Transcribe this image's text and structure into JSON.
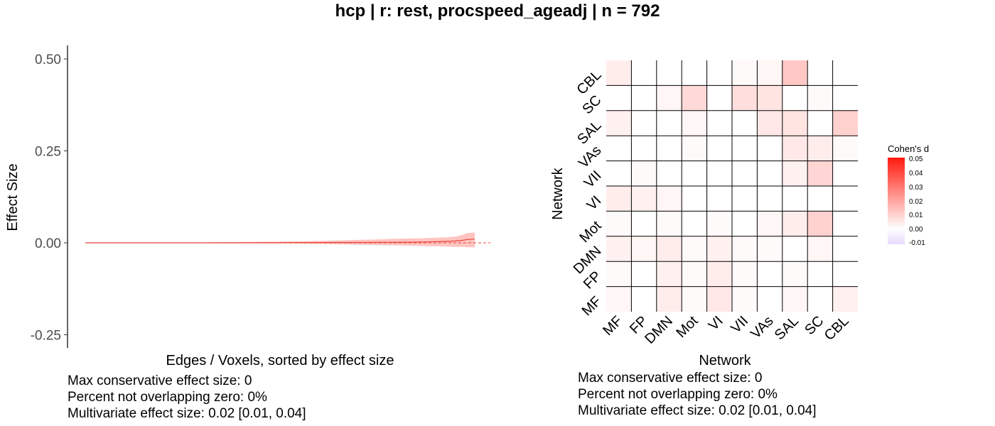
{
  "title": "hcp | r: rest, procspeed_ageadj | n = 792",
  "colors": {
    "ribbon": "#ffc4c0",
    "line": "#e8463a",
    "zero_line": "#e8463a"
  },
  "stats_left": {
    "line1": "Max conservative effect size: 0",
    "line2": "Percent not overlapping zero: 0%",
    "line3": "Multivariate effect size: 0.02 [0.01, 0.04]"
  },
  "stats_right": {
    "line1": "Max conservative effect size: 0",
    "line2": "Percent not overlapping zero: 0%",
    "line3": "Multivariate effect size: 0.02 [0.01, 0.04]"
  },
  "chart_data": [
    {
      "type": "area",
      "xlabel": "Edges / Voxels, sorted by effect size",
      "ylabel": "Effect Size",
      "ylim": [
        -0.28,
        0.53
      ],
      "xlim": [
        0,
        1
      ],
      "yticks": [
        "0.50",
        "0.25",
        "0.00",
        "-0.25"
      ],
      "ytick_values": [
        0.5,
        0.25,
        0.0,
        -0.25
      ],
      "reference_line": 0,
      "series": [
        {
          "x": [
            0,
            0.3,
            0.5,
            0.6,
            0.7,
            0.75,
            0.8,
            0.85,
            0.88,
            0.9,
            0.93,
            0.95,
            0.97,
            0.98,
            1.0
          ],
          "values": [
            0,
            0,
            0.0005,
            0.0008,
            0.001,
            0.0012,
            0.0015,
            0.002,
            0.0025,
            0.003,
            0.004,
            0.005,
            0.007,
            0.009,
            0.01
          ],
          "lower": [
            0,
            -0.001,
            -0.002,
            -0.003,
            -0.005,
            -0.006,
            -0.007,
            -0.008,
            -0.009,
            -0.009,
            -0.01,
            -0.011,
            -0.011,
            -0.012,
            -0.012
          ],
          "upper": [
            0,
            0.001,
            0.003,
            0.005,
            0.008,
            0.009,
            0.011,
            0.012,
            0.013,
            0.014,
            0.015,
            0.017,
            0.022,
            0.026,
            0.028
          ]
        }
      ]
    },
    {
      "type": "heatmap",
      "xlabel": "Network",
      "ylabel": "Network",
      "legend_title": "Cohen's d",
      "legend_ticks": [
        "0.05",
        "0.04",
        "0.03",
        "0.02",
        "0.01",
        "0.00",
        "-0.01"
      ],
      "legend_range": [
        -0.01,
        0.05
      ],
      "x_categories": [
        "MF",
        "FP",
        "DMN",
        "Mot",
        "VI",
        "VII",
        "VAs",
        "SAL",
        "SC",
        "CBL"
      ],
      "y_categories": [
        "MF",
        "FP",
        "DMN",
        "Mot",
        "VI",
        "VII",
        "VAs",
        "SAL",
        "SC",
        "CBL"
      ],
      "values": [
        [
          0.002,
          0.0,
          0.004,
          0.001,
          0.005,
          0.001,
          0.0,
          0.002,
          0.0,
          0.003
        ],
        [
          0.001,
          0.0,
          0.003,
          0.001,
          0.004,
          0.001,
          0.0,
          0.001,
          0.0,
          0.0
        ],
        [
          0.003,
          0.002,
          0.004,
          0.001,
          0.003,
          0.001,
          0.001,
          0.0,
          0.002,
          0.0
        ],
        [
          0.001,
          0.0,
          0.001,
          0.0,
          0.001,
          0.0,
          0.002,
          0.004,
          0.01,
          0.0
        ],
        [
          0.004,
          0.003,
          0.002,
          0.0,
          0.0,
          0.0,
          0.0,
          0.0,
          0.0,
          0.0
        ],
        [
          0.0,
          0.001,
          0.0,
          0.0,
          0.0,
          0.0,
          0.0,
          0.003,
          0.009,
          0.0
        ],
        [
          0.0,
          0.0,
          0.0,
          0.001,
          0.0,
          0.0,
          0.0,
          0.005,
          0.004,
          0.001
        ],
        [
          0.003,
          0.0,
          0.0,
          0.002,
          0.0,
          0.0,
          0.005,
          0.006,
          0.0,
          0.01
        ],
        [
          0.0,
          0.0,
          0.002,
          0.008,
          0.0,
          0.007,
          0.006,
          0.0,
          0.001,
          0.0
        ],
        [
          0.004,
          0.0,
          0.0,
          0.0,
          0.0,
          0.001,
          0.002,
          0.012,
          0.0,
          0.0
        ]
      ]
    }
  ]
}
